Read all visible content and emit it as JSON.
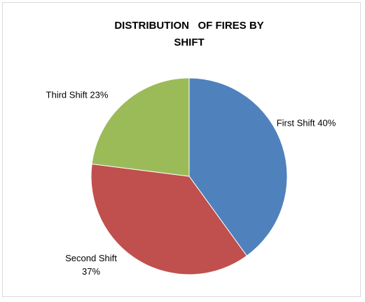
{
  "chart_data": {
    "type": "pie",
    "title": "DISTRIBUTION   OF FIRES BY SHIFT",
    "categories": [
      "First Shift",
      "Second Shift",
      "Third Shift"
    ],
    "values": [
      40,
      37,
      23
    ],
    "value_labels": [
      "40%",
      "37%",
      "23%"
    ],
    "colors": [
      "#4f81bd",
      "#c0504d",
      "#9bbb59"
    ]
  }
}
